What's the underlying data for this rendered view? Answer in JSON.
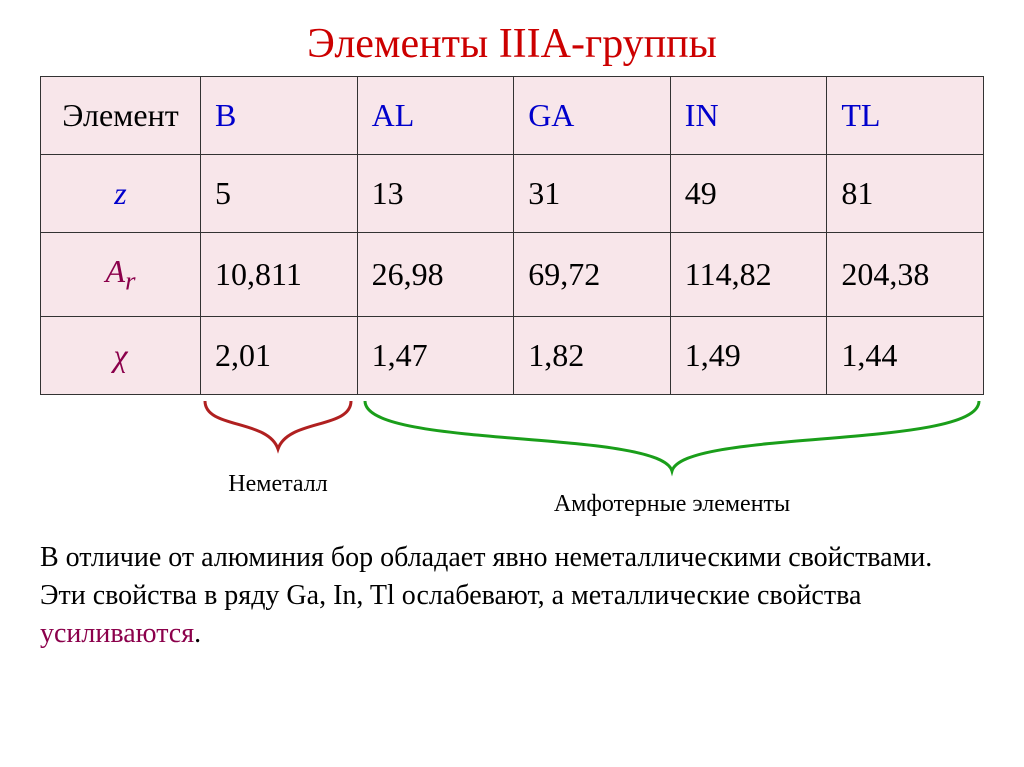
{
  "title": {
    "text": "Элементы IIIА-группы",
    "color": "#cc0000"
  },
  "table": {
    "bg_color": "#f8e6ea",
    "header_color": "#0000cc",
    "z_color": "#0000cc",
    "ar_color": "#8b004b",
    "chi_color": "#8b004b",
    "columns": [
      "Элемент",
      "B",
      "AL",
      "GA",
      "IN",
      "TL"
    ],
    "rows": [
      {
        "label": "z",
        "values": [
          "5",
          "13",
          "31",
          "49",
          "81"
        ]
      },
      {
        "label": "Ar",
        "html_label": "A<sub style='font-style:italic'>r</sub>",
        "values": [
          "10,811",
          "26,98",
          "69,72",
          "114,82",
          "204,38"
        ]
      },
      {
        "label": "χ",
        "values": [
          "2,01",
          "1,47",
          "1,82",
          "1,49",
          "1,44"
        ]
      }
    ]
  },
  "brackets": {
    "nonmetal": {
      "label": "Неметалл",
      "color": "#b02020"
    },
    "amphoteric": {
      "label": "Амфотерные элементы",
      "color": "#1a9e1a"
    }
  },
  "footer": {
    "text_before": "В отличие от алюминия бор обладает явно неметаллическими свойствами. Эти свойства в ряду Ga, In, Tl ослабевают, а металлические свойства ",
    "highlight": "усиливаются",
    "highlight_color": "#8b004b",
    "text_after": "."
  }
}
